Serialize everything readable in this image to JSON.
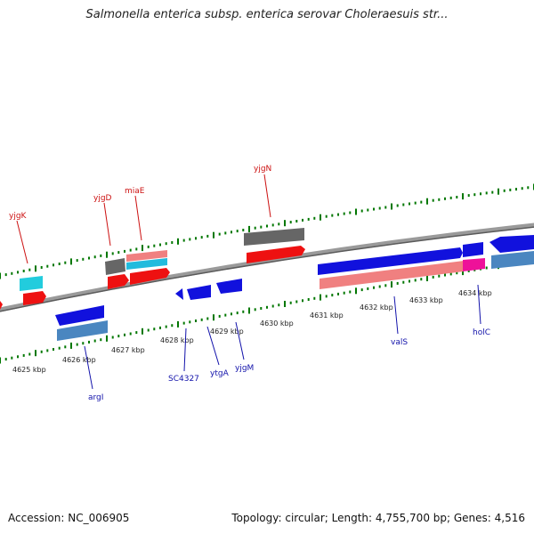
{
  "header": {
    "title": "Salmonella enterica subsp. enterica serovar Choleraesuis str..."
  },
  "footer": {
    "accession": "Accession: NC_006905",
    "topology": "Topology: circular; Length: 4,755,700 bp; Genes: 4,516"
  },
  "colors": {
    "red": "#ee1111",
    "blue": "#1111dd",
    "salmon": "#f08080",
    "teal": "#4a86c0",
    "gray": "#666666",
    "cyan": "#22ccdd",
    "pink": "#ee1199",
    "dark_gray": "#555555",
    "plus_label": "#cc1111",
    "minus_label": "#1111aa",
    "dot_green": "#007700"
  },
  "ticks": [
    "4625 kbp",
    "4626 kbp",
    "4627 kbp",
    "4628 kbp",
    "4629 kbp",
    "4630 kbp",
    "4631 kbp",
    "4632 kbp",
    "4633 kbp",
    "4634 kbp"
  ],
  "genes_top": [
    "yjgK",
    "yjgD",
    "miaE",
    "yjgN"
  ],
  "genes_bottom": [
    "argI",
    "SC4327",
    "ytgA",
    "yjgM",
    "valS",
    "holC"
  ]
}
